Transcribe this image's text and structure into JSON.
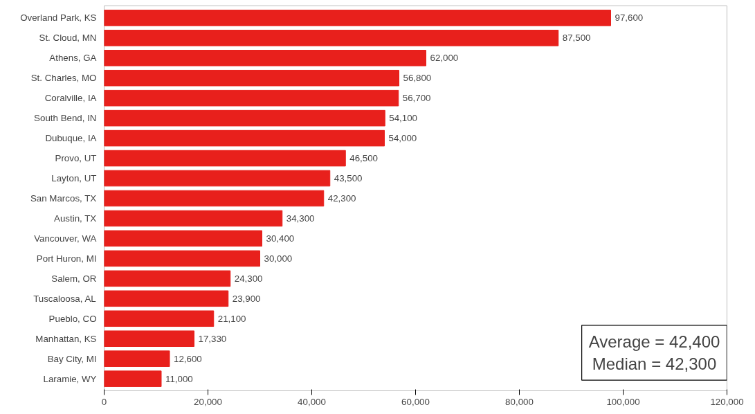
{
  "chart_data": {
    "type": "bar",
    "orientation": "horizontal",
    "categories": [
      "Overland Park, KS",
      "St. Cloud, MN",
      "Athens, GA",
      "St. Charles, MO",
      "Coralville, IA",
      "South Bend, IN",
      "Dubuque, IA",
      "Provo, UT",
      "Layton, UT",
      "San Marcos, TX",
      "Austin, TX",
      "Vancouver, WA",
      "Port Huron, MI",
      "Salem, OR",
      "Tuscaloosa, AL",
      "Pueblo, CO",
      "Manhattan, KS",
      "Bay City, MI",
      "Laramie, WY"
    ],
    "values": [
      97600,
      87500,
      62000,
      56800,
      56700,
      54100,
      54000,
      46500,
      43500,
      42300,
      34300,
      30400,
      30000,
      24300,
      23900,
      21100,
      17330,
      12600,
      11000
    ],
    "value_labels": [
      "97,600",
      "87,500",
      "62,000",
      "56,800",
      "56,700",
      "54,100",
      "54,000",
      "46,500",
      "43,500",
      "42,300",
      "34,300",
      "30,400",
      "30,000",
      "24,300",
      "23,900",
      "21,100",
      "17,330",
      "12,600",
      "11,000"
    ],
    "color": "#e8201c",
    "xlim": [
      0,
      120000
    ],
    "xticks": [
      {
        "value": 0,
        "label": "0"
      },
      {
        "value": 20000,
        "label": "20,000"
      },
      {
        "value": 40000,
        "label": "40,000"
      },
      {
        "value": 60000,
        "label": "60,000"
      },
      {
        "value": 80000,
        "label": "80,000"
      },
      {
        "value": 100000,
        "label": "100,000"
      },
      {
        "value": 120000,
        "label": "120,000"
      }
    ],
    "grid": false,
    "annotations": [
      "Average = 42,400",
      "Median = 42,300"
    ]
  }
}
